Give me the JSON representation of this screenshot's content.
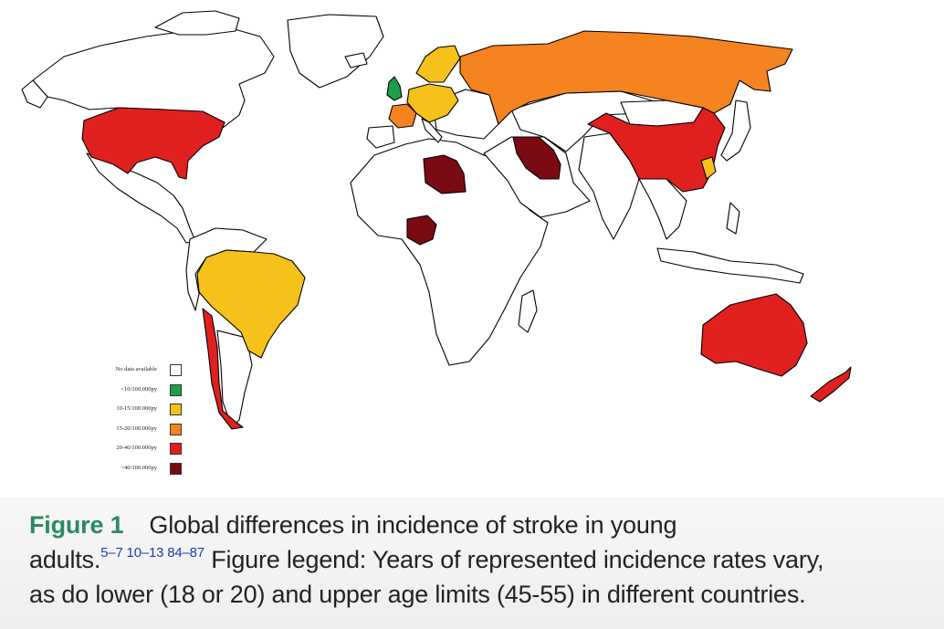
{
  "legend": {
    "items": [
      {
        "label": "No data available",
        "color": "#ffffff"
      },
      {
        "label": "<10/100.000py",
        "color": "#1e9e4a"
      },
      {
        "label": "10-15/100.000py",
        "color": "#f5c11a"
      },
      {
        "label": "15-20/100.000py",
        "color": "#f5831f"
      },
      {
        "label": "20-40/100.000py",
        "color": "#e01f1f"
      },
      {
        "label": ">40/100.000py",
        "color": "#7a0b12"
      }
    ]
  },
  "caption": {
    "figure_label": "Figure 1",
    "line1": "Global differences in incidence of stroke in young",
    "line2_start": "adults.",
    "refs": "5–7 10–13 84–87",
    "line2_end": " Figure legend: Years of represented incidence rates vary,",
    "line3": "as do lower (18 or 20) and upper age limits (45-55) in different countries."
  },
  "countries": [
    {
      "name": "United States",
      "category": "20-40/100.000py"
    },
    {
      "name": "Brazil",
      "category": "10-15/100.000py"
    },
    {
      "name": "Chile",
      "category": "20-40/100.000py"
    },
    {
      "name": "United Kingdom",
      "category": "<10/100.000py"
    },
    {
      "name": "France",
      "category": "15-20/100.000py"
    },
    {
      "name": "Germany",
      "category": "10-15/100.000py"
    },
    {
      "name": "Scandinavia",
      "category": "10-15/100.000py"
    },
    {
      "name": "Russia",
      "category": "15-20/100.000py"
    },
    {
      "name": "China",
      "category": "20-40/100.000py"
    },
    {
      "name": "Libya",
      "category": ">40/100.000py"
    },
    {
      "name": "Nigeria",
      "category": ">40/100.000py"
    },
    {
      "name": "Iran",
      "category": ">40/100.000py"
    },
    {
      "name": "Australia",
      "category": "20-40/100.000py"
    },
    {
      "name": "New Zealand",
      "category": "20-40/100.000py"
    }
  ]
}
